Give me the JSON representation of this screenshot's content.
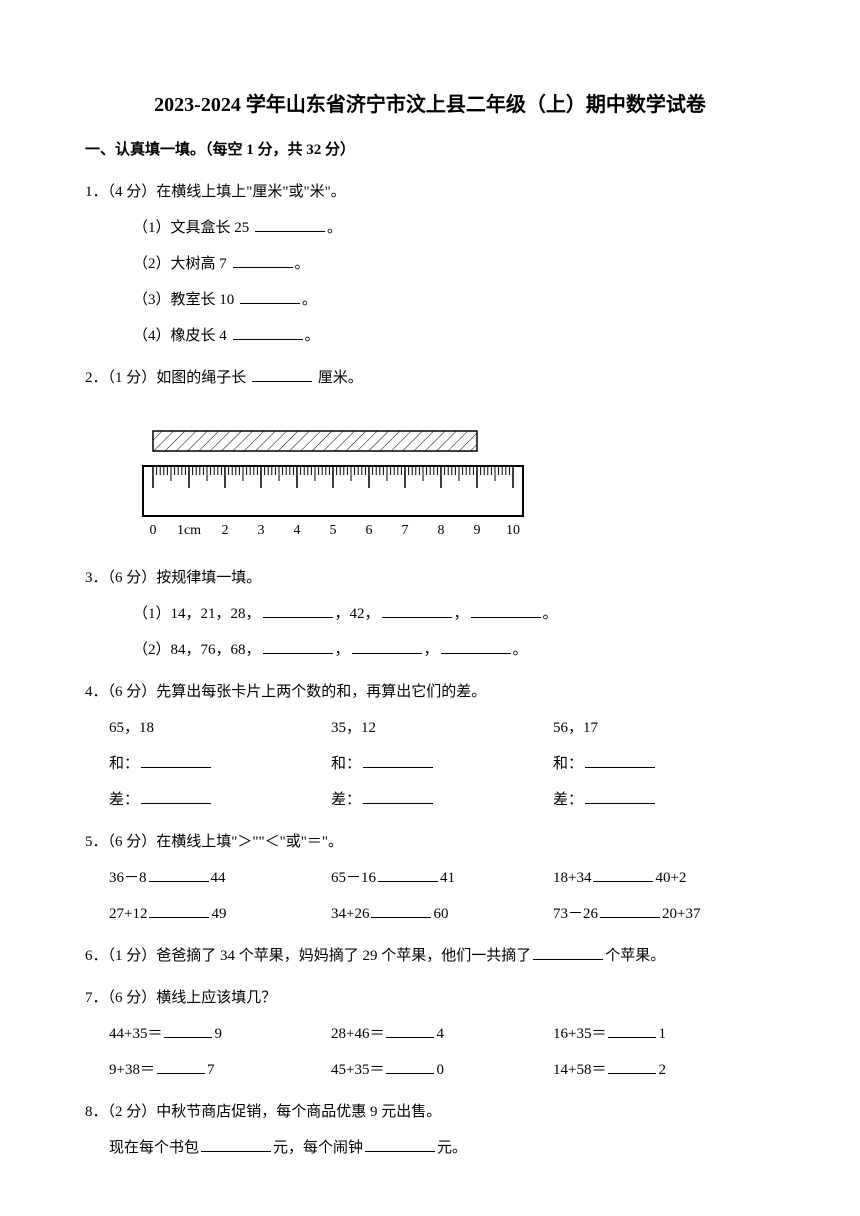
{
  "title": "2023-2024 学年山东省济宁市汶上县二年级（上）期中数学试卷",
  "section1": {
    "header": "一、认真填一填。（每空 1 分，共 32 分）",
    "q1": {
      "stem": "1．（4 分）在横线上填上\"厘米\"或\"米\"。",
      "items": [
        "（1）文具盒长 25",
        "（2）大树高 7",
        "（3）教室长 10",
        "（4）橡皮长 4"
      ],
      "suffix": "。"
    },
    "q2": {
      "stem_before": "2．（1 分）如图的绳子长",
      "stem_after": "厘米。",
      "ruler": {
        "labels": [
          "0",
          "1cm",
          "2",
          "3",
          "4",
          "5",
          "6",
          "7",
          "8",
          "9",
          "10"
        ],
        "bar_start": 0,
        "bar_end": 9,
        "major_ticks": 11,
        "minor_per_major": 10,
        "bar_fill": "#ffffff",
        "hatch_color": "#000000",
        "stroke": "#000000"
      }
    },
    "q3": {
      "stem": "3．（6 分）按规律填一填。",
      "line1_parts": [
        "（1）14，21，28，",
        "，42，",
        "，",
        "。"
      ],
      "line2_parts": [
        "（2）84，76，68，",
        "，",
        "，",
        "。"
      ]
    },
    "q4": {
      "stem": "4．（6 分）先算出每张卡片上两个数的和，再算出它们的差。",
      "cards": [
        {
          "nums": "65，18"
        },
        {
          "nums": "35，12"
        },
        {
          "nums": "56，17"
        }
      ],
      "sum_label": "和：",
      "diff_label": "差："
    },
    "q5": {
      "stem": "5．（6 分）在横线上填\"＞\"\"＜\"或\"＝\"。",
      "rows": [
        [
          {
            "left": "36－8",
            "right": "44"
          },
          {
            "left": "65－16",
            "right": "41"
          },
          {
            "left": "18+34",
            "right": "40+2"
          }
        ],
        [
          {
            "left": "27+12",
            "right": "49"
          },
          {
            "left": "34+26",
            "right": "60"
          },
          {
            "left": "73－26",
            "right": "20+37"
          }
        ]
      ]
    },
    "q6": {
      "before": "6．（1 分）爸爸摘了 34 个苹果，妈妈摘了 29 个苹果，他们一共摘了",
      "after": "个苹果。"
    },
    "q7": {
      "stem": "7．（6 分）横线上应该填几？",
      "rows": [
        [
          {
            "left": "44+35＝",
            "right": "9"
          },
          {
            "left": "28+46＝",
            "right": "4"
          },
          {
            "left": "16+35＝",
            "right": "1"
          }
        ],
        [
          {
            "left": "9+38＝",
            "right": "7"
          },
          {
            "left": "45+35＝",
            "right": "0"
          },
          {
            "left": "14+58＝",
            "right": "2"
          }
        ]
      ]
    },
    "q8": {
      "stem": "8．（2 分）中秋节商店促销，每个商品优惠 9 元出售。",
      "line2_before": "现在每个书包",
      "line2_mid": "元，每个闹钟",
      "line2_after": "元。"
    }
  }
}
